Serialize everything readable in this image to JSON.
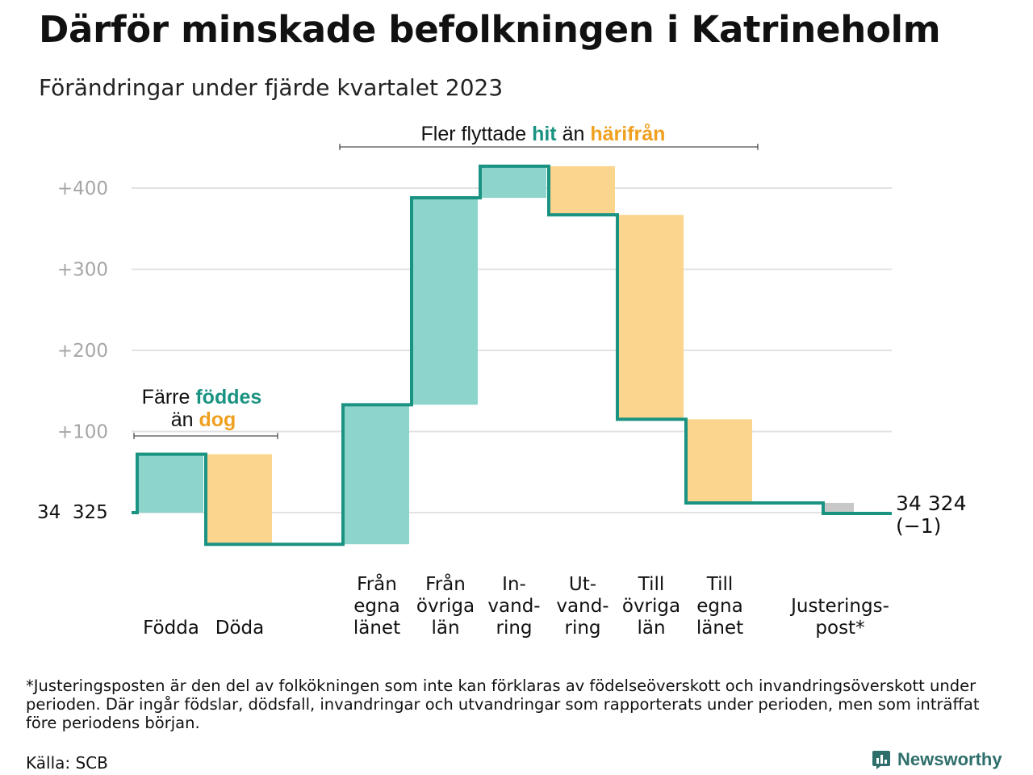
{
  "header": {
    "title": "Därför minskade befolkningen i Katrineholm",
    "subtitle": "Förändringar under fjärde kvartalet 2023"
  },
  "annotations": {
    "births": {
      "line1": "Färre",
      "hl1": "föddes",
      "line2": "än",
      "hl2": "dog"
    },
    "moves": {
      "text1": "Fler flyttade",
      "hl1": "hit",
      "text2": "än",
      "hl2": "härifrån"
    }
  },
  "labels": {
    "start": "34  325",
    "end_value": "34 324",
    "end_change": "(−1)"
  },
  "colors": {
    "increase": "#8dd5cc",
    "decrease": "#fbd48e",
    "adjustment": "#c8c8c8",
    "line": "#1a9382",
    "hit": "#1a9382",
    "harifran": "#f0a020",
    "grid": "#e2e2e2",
    "tick": "#a6a6a6"
  },
  "chart_data": {
    "type": "waterfall",
    "start_value": 34325,
    "end_value": 34324,
    "y_ticks": [
      "+100",
      "+200",
      "+300",
      "+400"
    ],
    "y_tick_values": [
      100,
      200,
      300,
      400
    ],
    "ylim": [
      -40,
      430
    ],
    "steps": [
      {
        "label": [
          "Födda"
        ],
        "change": 72,
        "kind": "increase"
      },
      {
        "label": [
          "Döda"
        ],
        "change": -111,
        "kind": "decrease"
      },
      {
        "label": [
          "Från",
          "egna",
          "länet"
        ],
        "change": 172,
        "kind": "increase"
      },
      {
        "label": [
          "Från",
          "övriga",
          "län"
        ],
        "change": 255,
        "kind": "increase"
      },
      {
        "label": [
          "In-",
          "vand-",
          "ring"
        ],
        "change": 39,
        "kind": "increase"
      },
      {
        "label": [
          "Ut-",
          "vand-",
          "ring"
        ],
        "change": -60,
        "kind": "decrease"
      },
      {
        "label": [
          "Till",
          "övriga",
          "län"
        ],
        "change": -252,
        "kind": "decrease"
      },
      {
        "label": [
          "Till",
          "egna",
          "länet"
        ],
        "change": -103,
        "kind": "decrease"
      },
      {
        "label": [
          "Justerings-",
          "post*"
        ],
        "change": -13,
        "kind": "adjustment"
      }
    ]
  },
  "footnote": "*Justeringsposten är den del av folkökningen som inte kan förklaras av födelseöverskott och invandringsöverskott under perioden. Där ingår födslar, dödsfall, invandringar och utvandringar som rapporterats under perioden, men som inträffat före periodens början.",
  "source": "Källa: SCB",
  "brand": "Newsworthy"
}
